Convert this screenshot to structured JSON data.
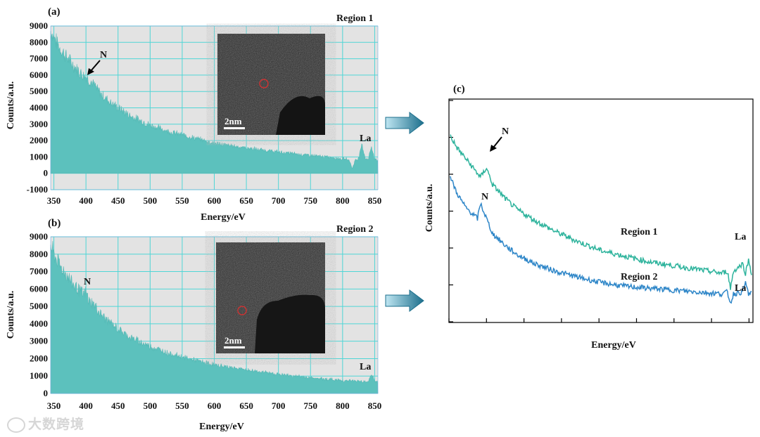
{
  "watermark": "大数跨境",
  "colors": {
    "teal_fill": "#5cc1bd",
    "region1_line": "#2db39c",
    "region2_line": "#2e86c8",
    "grid": "#4fd6d6",
    "plot_bg": "#e3e3e3",
    "arrow_dark": "#1d6f8c",
    "arrow_light": "#bfe6f2"
  },
  "chart_data": [
    {
      "id": "a",
      "type": "area",
      "panel_label": "(a)",
      "title": "Region 1",
      "xlabel": "Energy/eV",
      "ylabel": "Counts/a.u.",
      "xlim": [
        345,
        855
      ],
      "ylim": [
        -1000,
        9000
      ],
      "x_ticks": [
        "350",
        "400",
        "450",
        "500",
        "550",
        "600",
        "650",
        "700",
        "750",
        "800",
        "850"
      ],
      "y_ticks": [
        "-1000",
        "0",
        "1000",
        "2000",
        "3000",
        "4000",
        "5000",
        "6000",
        "7000",
        "8000",
        "9000"
      ],
      "x": [
        345,
        350,
        360,
        370,
        380,
        390,
        400,
        410,
        420,
        430,
        440,
        450,
        470,
        500,
        530,
        560,
        600,
        650,
        700,
        750,
        800,
        810,
        815,
        820,
        825,
        830,
        835,
        840,
        845,
        850,
        855
      ],
      "values": [
        8700,
        8300,
        7600,
        7100,
        6600,
        6200,
        5900,
        5500,
        5000,
        4600,
        4300,
        4000,
        3500,
        2950,
        2550,
        2250,
        1850,
        1550,
        1300,
        1100,
        900,
        850,
        300,
        820,
        900,
        1800,
        950,
        850,
        1650,
        850,
        800
      ],
      "annotations": {
        "n": "N",
        "la": "La"
      },
      "inset": {
        "scale_bar": "2nm"
      }
    },
    {
      "id": "b",
      "type": "area",
      "panel_label": "(b)",
      "title": "Region 2",
      "xlabel": "Energy/eV",
      "ylabel": "Counts/a.u.",
      "xlim": [
        345,
        855
      ],
      "ylim": [
        0,
        9000
      ],
      "x_ticks": [
        "350",
        "400",
        "450",
        "500",
        "550",
        "600",
        "650",
        "700",
        "750",
        "800",
        "850"
      ],
      "y_ticks": [
        "0",
        "1000",
        "2000",
        "3000",
        "4000",
        "5000",
        "6000",
        "7000",
        "8000",
        "9000"
      ],
      "x": [
        345,
        350,
        360,
        370,
        380,
        390,
        395,
        400,
        405,
        410,
        420,
        430,
        440,
        450,
        470,
        500,
        530,
        560,
        600,
        650,
        700,
        750,
        800,
        830,
        840,
        845,
        850,
        855
      ],
      "values": [
        8500,
        8000,
        7300,
        6800,
        6300,
        5900,
        5700,
        5800,
        5300,
        5200,
        4700,
        4300,
        4000,
        3700,
        3200,
        2700,
        2300,
        2000,
        1650,
        1350,
        1100,
        900,
        750,
        700,
        680,
        1150,
        700,
        650
      ],
      "annotations": {
        "n": "N",
        "la": "La"
      },
      "inset": {
        "scale_bar": "2nm"
      }
    },
    {
      "id": "c",
      "type": "line",
      "panel_label": "(c)",
      "xlabel": "Energy/eV",
      "ylabel": "Counts/a.u.",
      "series": [
        {
          "name": "Region 1",
          "x": [
            0,
            0.02,
            0.06,
            0.1,
            0.12,
            0.14,
            0.18,
            0.22,
            0.28,
            0.35,
            0.42,
            0.5,
            0.58,
            0.66,
            0.74,
            0.82,
            0.9,
            0.92,
            0.93,
            0.94,
            0.97,
            0.98,
            0.99,
            1.0
          ],
          "values": [
            0.88,
            0.82,
            0.74,
            0.66,
            0.71,
            0.62,
            0.55,
            0.49,
            0.43,
            0.37,
            0.32,
            0.27,
            0.24,
            0.21,
            0.19,
            0.17,
            0.15,
            0.16,
            0.07,
            0.16,
            0.2,
            0.15,
            0.22,
            0.15
          ]
        },
        {
          "name": "Region 2",
          "x": [
            0,
            0.02,
            0.05,
            0.09,
            0.1,
            0.12,
            0.14,
            0.18,
            0.22,
            0.28,
            0.35,
            0.42,
            0.5,
            0.58,
            0.66,
            0.74,
            0.82,
            0.9,
            0.92,
            0.93,
            0.94,
            0.97,
            0.98,
            0.99,
            1.0
          ],
          "values": [
            0.66,
            0.58,
            0.5,
            0.44,
            0.52,
            0.44,
            0.36,
            0.3,
            0.25,
            0.2,
            0.16,
            0.13,
            0.1,
            0.08,
            0.07,
            0.06,
            0.05,
            0.04,
            0.05,
            -0.01,
            0.04,
            0.05,
            0.1,
            0.04,
            0.04
          ]
        }
      ],
      "annotations": {
        "n_top": "N",
        "n_bottom": "N",
        "la_top": "La",
        "la_bottom": "La"
      }
    }
  ]
}
